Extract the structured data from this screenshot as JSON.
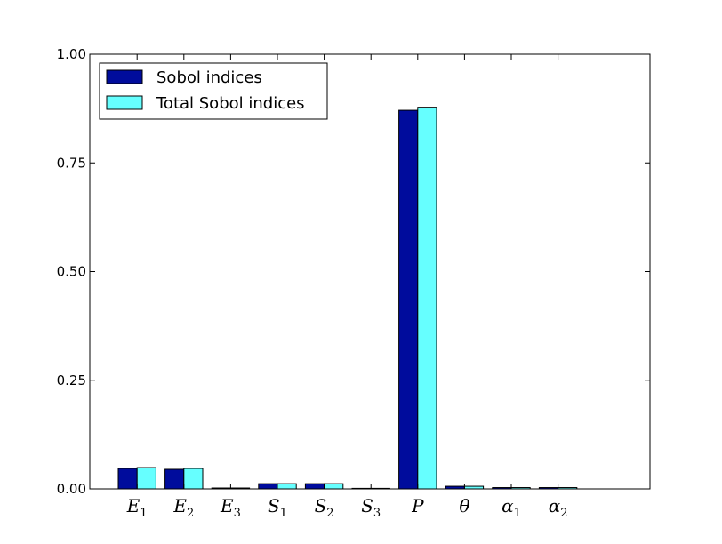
{
  "chart_data": {
    "type": "bar",
    "title": "",
    "xlabel": "",
    "ylabel": "",
    "ylim": [
      0,
      1.0
    ],
    "yticks": [
      "0.00",
      "0.25",
      "0.50",
      "0.75",
      "1.00"
    ],
    "categories": [
      {
        "main": "E",
        "sub": "1"
      },
      {
        "main": "E",
        "sub": "2"
      },
      {
        "main": "E",
        "sub": "3"
      },
      {
        "main": "S",
        "sub": "1"
      },
      {
        "main": "S",
        "sub": "2"
      },
      {
        "main": "S",
        "sub": "3"
      },
      {
        "main": "P",
        "sub": ""
      },
      {
        "main": "θ",
        "sub": ""
      },
      {
        "main": "α",
        "sub": "1"
      },
      {
        "main": "α",
        "sub": "2"
      }
    ],
    "series": [
      {
        "name": "Sobol indices",
        "color": "#000c9c",
        "values": [
          0.047,
          0.045,
          0.002,
          0.012,
          0.012,
          0.0,
          0.871,
          0.006,
          0.003,
          0.003
        ]
      },
      {
        "name": "Total Sobol indices",
        "color": "#66ffff",
        "values": [
          0.049,
          0.047,
          0.002,
          0.012,
          0.012,
          0.0,
          0.878,
          0.006,
          0.003,
          0.003
        ]
      }
    ],
    "legend_position": "top-left",
    "grid": false
  }
}
